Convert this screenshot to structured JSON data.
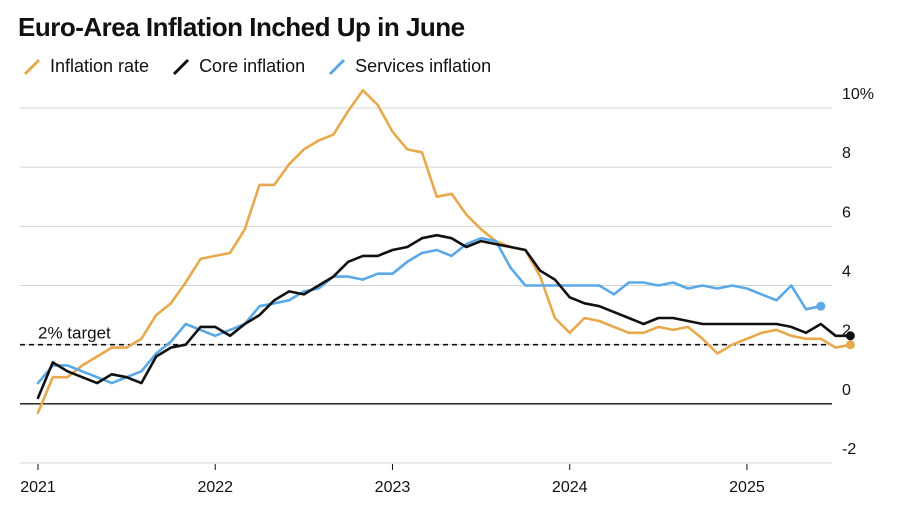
{
  "chart_data": {
    "type": "line",
    "title": "Euro-Area Inflation Inched Up in June",
    "x_start": "2021-01",
    "x_axis_labels": [
      "2021",
      "2022",
      "2023",
      "2024",
      "2025"
    ],
    "y_ticks": [
      {
        "value": 10,
        "label": "10%"
      },
      {
        "value": 8,
        "label": "8"
      },
      {
        "value": 6,
        "label": "6"
      },
      {
        "value": 4,
        "label": "4"
      },
      {
        "value": 2,
        "label": "2"
      },
      {
        "value": 0,
        "label": "0"
      },
      {
        "value": -2,
        "label": "-2"
      }
    ],
    "ylim": [
      -2,
      10
    ],
    "reference_line": {
      "value": 2,
      "label": "2% target"
    },
    "series": [
      {
        "name": "Inflation rate",
        "color": "#e8a84c",
        "values": [
          -0.3,
          0.9,
          0.9,
          1.3,
          1.6,
          1.9,
          1.9,
          2.2,
          3.0,
          3.4,
          4.1,
          4.9,
          5.0,
          5.1,
          5.9,
          7.4,
          7.4,
          8.1,
          8.6,
          8.9,
          9.1,
          9.9,
          10.6,
          10.1,
          9.2,
          8.6,
          8.5,
          7.0,
          7.1,
          6.4,
          5.9,
          5.5,
          5.3,
          5.2,
          4.3,
          2.9,
          2.4,
          2.9,
          2.8,
          2.6,
          2.4,
          2.4,
          2.6,
          2.5,
          2.6,
          2.2,
          1.7,
          2.0,
          2.2,
          2.4,
          2.5,
          2.3,
          2.2,
          2.2,
          1.9,
          2.0
        ]
      },
      {
        "name": "Core inflation",
        "color": "#111111",
        "values": [
          0.2,
          1.4,
          1.1,
          0.9,
          0.7,
          1.0,
          0.9,
          0.7,
          1.6,
          1.9,
          2.0,
          2.6,
          2.6,
          2.3,
          2.7,
          3.0,
          3.5,
          3.8,
          3.7,
          4.0,
          4.3,
          4.8,
          5.0,
          5.0,
          5.2,
          5.3,
          5.6,
          5.7,
          5.6,
          5.3,
          5.5,
          5.4,
          5.3,
          5.2,
          4.5,
          4.2,
          3.6,
          3.4,
          3.3,
          3.1,
          2.9,
          2.7,
          2.9,
          2.9,
          2.8,
          2.7,
          2.7,
          2.7,
          2.7,
          2.7,
          2.7,
          2.6,
          2.4,
          2.7,
          2.3,
          2.3
        ]
      },
      {
        "name": "Services inflation",
        "color": "#5aa9e6",
        "values": [
          0.7,
          1.3,
          1.3,
          1.1,
          0.9,
          0.7,
          0.9,
          1.1,
          1.7,
          2.1,
          2.7,
          2.5,
          2.3,
          2.5,
          2.7,
          3.3,
          3.4,
          3.5,
          3.8,
          3.9,
          4.3,
          4.3,
          4.2,
          4.4,
          4.4,
          4.8,
          5.1,
          5.2,
          5.0,
          5.4,
          5.6,
          5.5,
          4.6,
          4.0,
          4.0,
          4.0,
          4.0,
          4.0,
          4.0,
          3.7,
          4.1,
          4.1,
          4.0,
          4.1,
          3.9,
          4.0,
          3.9,
          4.0,
          3.9,
          3.7,
          3.5,
          4.0,
          3.2,
          3.3
        ]
      }
    ]
  }
}
